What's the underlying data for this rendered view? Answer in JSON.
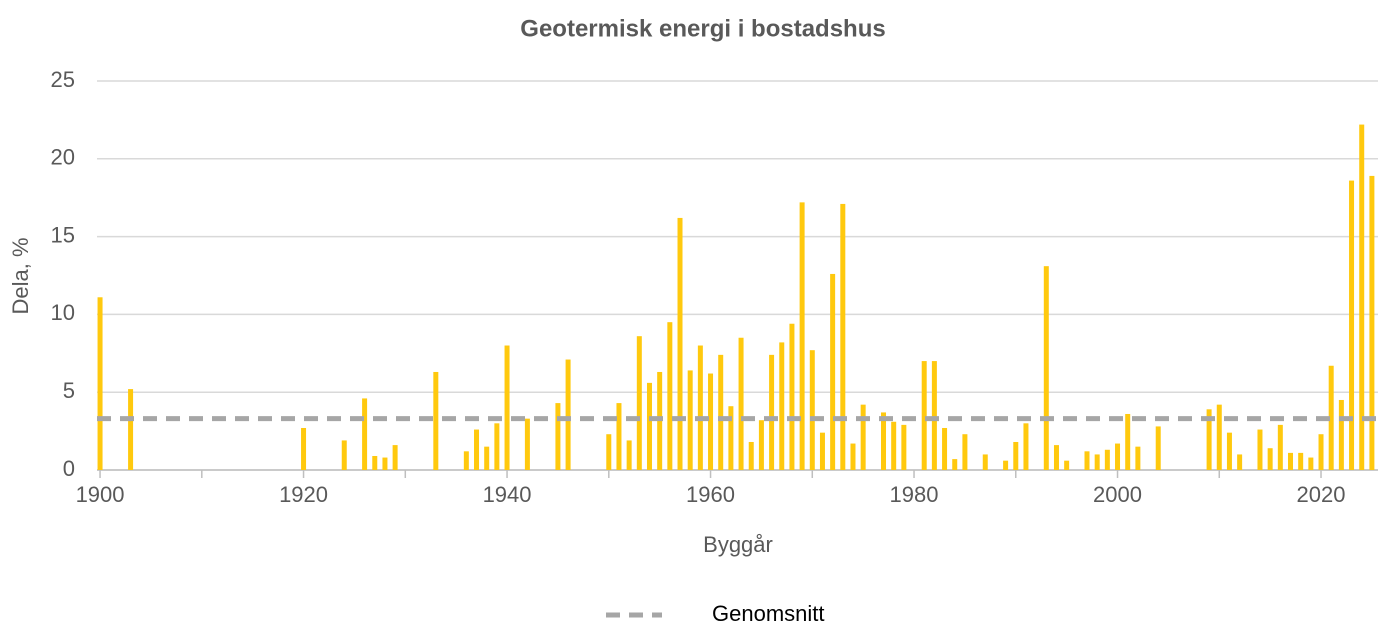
{
  "chart_data": {
    "type": "bar",
    "title": "Geotermisk energi i bostadshus",
    "x_label": "Byggår",
    "y_label": "Dela, %",
    "x": [
      1900,
      1903,
      1920,
      1924,
      1926,
      1927,
      1928,
      1929,
      1933,
      1936,
      1937,
      1938,
      1939,
      1940,
      1942,
      1945,
      1946,
      1950,
      1951,
      1952,
      1953,
      1954,
      1955,
      1956,
      1957,
      1958,
      1959,
      1960,
      1961,
      1962,
      1963,
      1964,
      1965,
      1966,
      1967,
      1968,
      1969,
      1970,
      1971,
      1972,
      1973,
      1974,
      1975,
      1977,
      1978,
      1979,
      1981,
      1982,
      1983,
      1984,
      1985,
      1987,
      1989,
      1990,
      1991,
      1993,
      1994,
      1995,
      1997,
      1998,
      1999,
      2000,
      2001,
      2002,
      2004,
      2009,
      2010,
      2011,
      2012,
      2014,
      2015,
      2016,
      2017,
      2018,
      2019,
      2020,
      2021,
      2022,
      2023,
      2024,
      2025
    ],
    "values": [
      11.1,
      5.2,
      2.7,
      1.9,
      4.6,
      0.9,
      0.8,
      1.6,
      6.3,
      1.2,
      2.6,
      1.5,
      3.0,
      8.0,
      3.3,
      4.3,
      7.1,
      2.3,
      4.3,
      1.9,
      8.6,
      5.6,
      6.3,
      9.5,
      16.2,
      6.4,
      8.0,
      6.2,
      7.4,
      4.1,
      8.5,
      1.8,
      3.2,
      7.4,
      8.2,
      9.4,
      17.2,
      7.7,
      2.4,
      12.6,
      17.1,
      1.7,
      4.2,
      3.7,
      3.1,
      2.9,
      7.0,
      7.0,
      2.7,
      0.7,
      2.3,
      1.0,
      0.6,
      1.8,
      3.0,
      13.1,
      1.6,
      0.6,
      1.2,
      1.0,
      1.3,
      1.7,
      3.6,
      1.5,
      2.8,
      3.9,
      4.2,
      2.4,
      1.0,
      2.6,
      1.4,
      2.9,
      1.1,
      1.1,
      0.8,
      2.3,
      6.7,
      4.5,
      18.6,
      22.2,
      18.9
    ],
    "color": "#ffc90e",
    "average": {
      "name": "Genomsnitt",
      "value": 3.3,
      "color": "#a6a6a6"
    },
    "xlim": [
      1899.7,
      2025.6
    ],
    "xticks": [
      1900,
      1920,
      1940,
      1960,
      1980,
      2000,
      2020
    ],
    "xminorticks": [
      1910,
      1930,
      1950,
      1970,
      1990,
      2010
    ],
    "ylim": [
      0,
      25
    ],
    "yticks": [
      0,
      5,
      10,
      15,
      20,
      25
    ],
    "grid": true,
    "legend": "bottom"
  }
}
